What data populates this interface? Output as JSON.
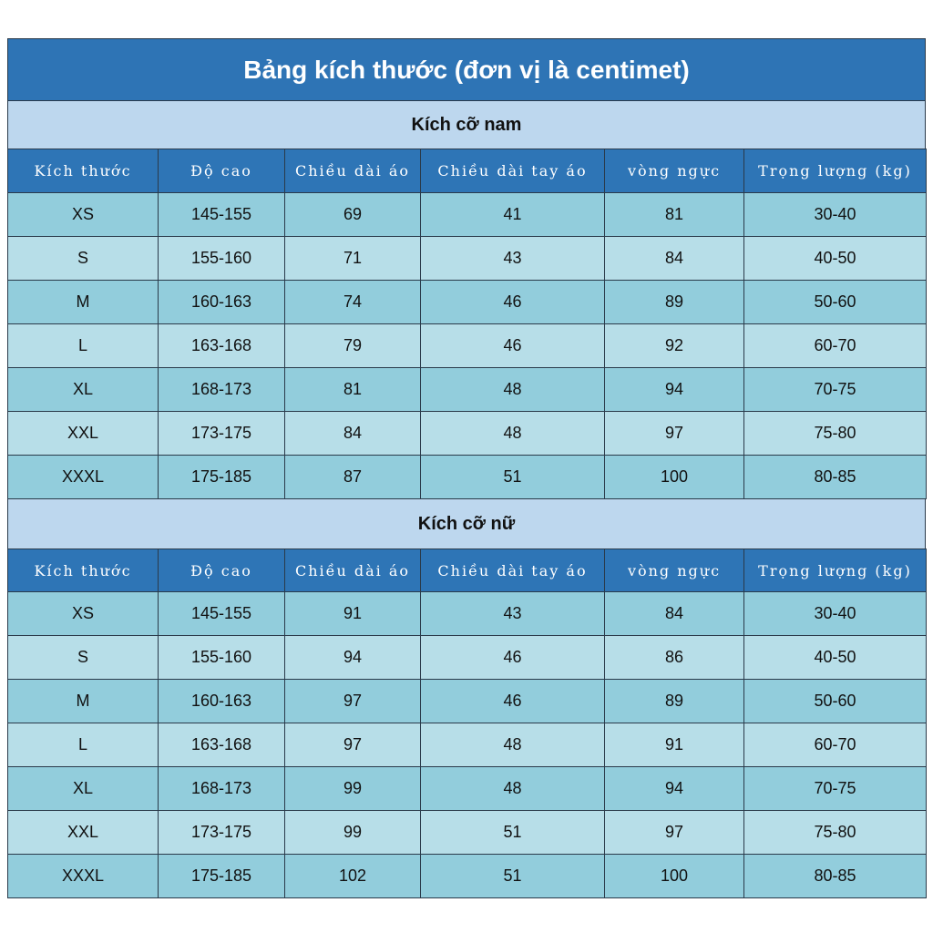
{
  "title": "Bảng kích thước (đơn vị là centimet)",
  "sections": [
    {
      "title": "Kích cỡ nam",
      "header": [
        "Kích thước",
        "Độ cao",
        "Chiều dài áo",
        "Chiều dài tay áo",
        "vòng ngực",
        "Trọng lượng (kg)"
      ],
      "rows": [
        [
          "XS",
          "145-155",
          "69",
          "41",
          "81",
          "30-40"
        ],
        [
          "S",
          "155-160",
          "71",
          "43",
          "84",
          "40-50"
        ],
        [
          "M",
          "160-163",
          "74",
          "46",
          "89",
          "50-60"
        ],
        [
          "L",
          "163-168",
          "79",
          "46",
          "92",
          "60-70"
        ],
        [
          "XL",
          "168-173",
          "81",
          "48",
          "94",
          "70-75"
        ],
        [
          "XXL",
          "173-175",
          "84",
          "48",
          "97",
          "75-80"
        ],
        [
          "XXXL",
          "175-185",
          "87",
          "51",
          "100",
          "80-85"
        ]
      ]
    },
    {
      "title": "Kích cỡ nữ",
      "header": [
        "Kích thước",
        "Độ cao",
        "Chiều dài áo",
        "Chiều dài tay áo",
        "vòng ngực",
        "Trọng lượng (kg)"
      ],
      "rows": [
        [
          "XS",
          "145-155",
          "91",
          "43",
          "84",
          "30-40"
        ],
        [
          "S",
          "155-160",
          "94",
          "46",
          "86",
          "40-50"
        ],
        [
          "M",
          "160-163",
          "97",
          "46",
          "89",
          "50-60"
        ],
        [
          "L",
          "163-168",
          "97",
          "48",
          "91",
          "60-70"
        ],
        [
          "XL",
          "168-173",
          "99",
          "48",
          "94",
          "70-75"
        ],
        [
          "XXL",
          "173-175",
          "99",
          "51",
          "97",
          "75-80"
        ],
        [
          "XXXL",
          "175-185",
          "102",
          "51",
          "100",
          "80-85"
        ]
      ]
    }
  ]
}
